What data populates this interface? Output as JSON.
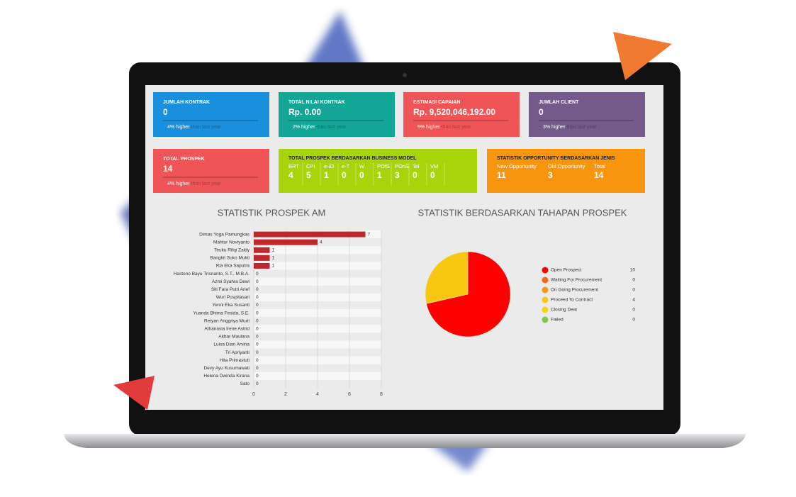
{
  "cards": [
    {
      "title": "JUMLAH KONTRAK",
      "value": "0",
      "change": "4% higher",
      "note": "than last year",
      "color": "#1a8fdd"
    },
    {
      "title": "TOTAL NILAI KONTRAK",
      "value": "Rp. 0.00",
      "change": "2% higher",
      "note": "than last year",
      "color": "#13a596"
    },
    {
      "title": "ESTIMASI CAPAIAN",
      "value": "Rp. 9,520,046,192.00",
      "change": "5% higher",
      "note": "than last year",
      "color": "#ef5457"
    },
    {
      "title": "JUMLAH CLIENT",
      "value": "0",
      "change": "3% higher",
      "note": "than last year",
      "color": "#735a8a"
    },
    {
      "title": "TOTAL PROSPEK",
      "value": "14",
      "change": "4% higher",
      "note": "than last year",
      "color": "#ef5457"
    }
  ],
  "model_card": {
    "title": "TOTAL PROSPEK BERDASARKAN BUSINESS MODEL",
    "color": "#a8d40c",
    "columns": [
      {
        "label": "BRT",
        "value": "4"
      },
      {
        "label": "CPI",
        "value": "5"
      },
      {
        "label": "e-ID",
        "value": "1"
      },
      {
        "label": "e-T",
        "value": "0"
      },
      {
        "label": "W",
        "value": "0"
      },
      {
        "label": "POfS",
        "value": "1"
      },
      {
        "label": "POnS",
        "value": "3"
      },
      {
        "label": "Tel",
        "value": "0"
      },
      {
        "label": "VM",
        "value": "0"
      }
    ]
  },
  "opportunity_card": {
    "title": "STATISTIK OPPORTUNITY BERDASARKAN JENIS",
    "color": "#f7950f",
    "columns": [
      {
        "label": "New Opportunity",
        "value": "11"
      },
      {
        "label": "Old Opportunity",
        "value": "3"
      },
      {
        "label": "Total",
        "value": "14"
      }
    ]
  },
  "chart_data": [
    {
      "type": "bar",
      "orientation": "horizontal",
      "title": "STATISTIK PROSPEK AM",
      "color": "#c0272d",
      "categories": [
        "Dimas Yoga Pamungkas",
        "Mahtur Noviyanto",
        "Teuku Rifqi Zaldy",
        "Bangkit Suko Mukti",
        "Ria Eka Saputra",
        "Hastono Bayu Trisnanto, S.T., M.B.A.",
        "Azmi Syahra Dewi",
        "Siti Fara Putri Arief",
        "Wuri Puspitasari",
        "Yenni Eka Susanti",
        "Yuanda Bhima Fesida, S.E.",
        "Retyan Anggriya Murti",
        "Athanasia Irene Astrid",
        "Akbar Maulana",
        "Luisa Dian Arvina",
        "Tri Apriyanti",
        "Hita Primastuti",
        "Devy Ayu Kusumawati",
        "Helena Dwinda Kirana",
        "Sato"
      ],
      "values": [
        7,
        4,
        1,
        1,
        1,
        0,
        0,
        0,
        0,
        0,
        0,
        0,
        0,
        0,
        0,
        0,
        0,
        0,
        0,
        0
      ],
      "xlim": [
        0,
        8
      ],
      "xticks": [
        0,
        2,
        4,
        6,
        8
      ],
      "grid": true
    },
    {
      "type": "pie",
      "title": "STATISTIK BERDASARKAN TAHAPAN PROSPEK",
      "categories": [
        "Open Prospect",
        "Waiting For Procurement",
        "On Going Procurement",
        "Proceed To Contract",
        "Closing Deal",
        "Failed"
      ],
      "values": [
        10,
        0,
        0,
        4,
        0,
        0
      ],
      "colors": [
        "#ff0000",
        "#f26a1b",
        "#f39c12",
        "#f7c812",
        "#f5d60a",
        "#8bc34a"
      ]
    }
  ]
}
